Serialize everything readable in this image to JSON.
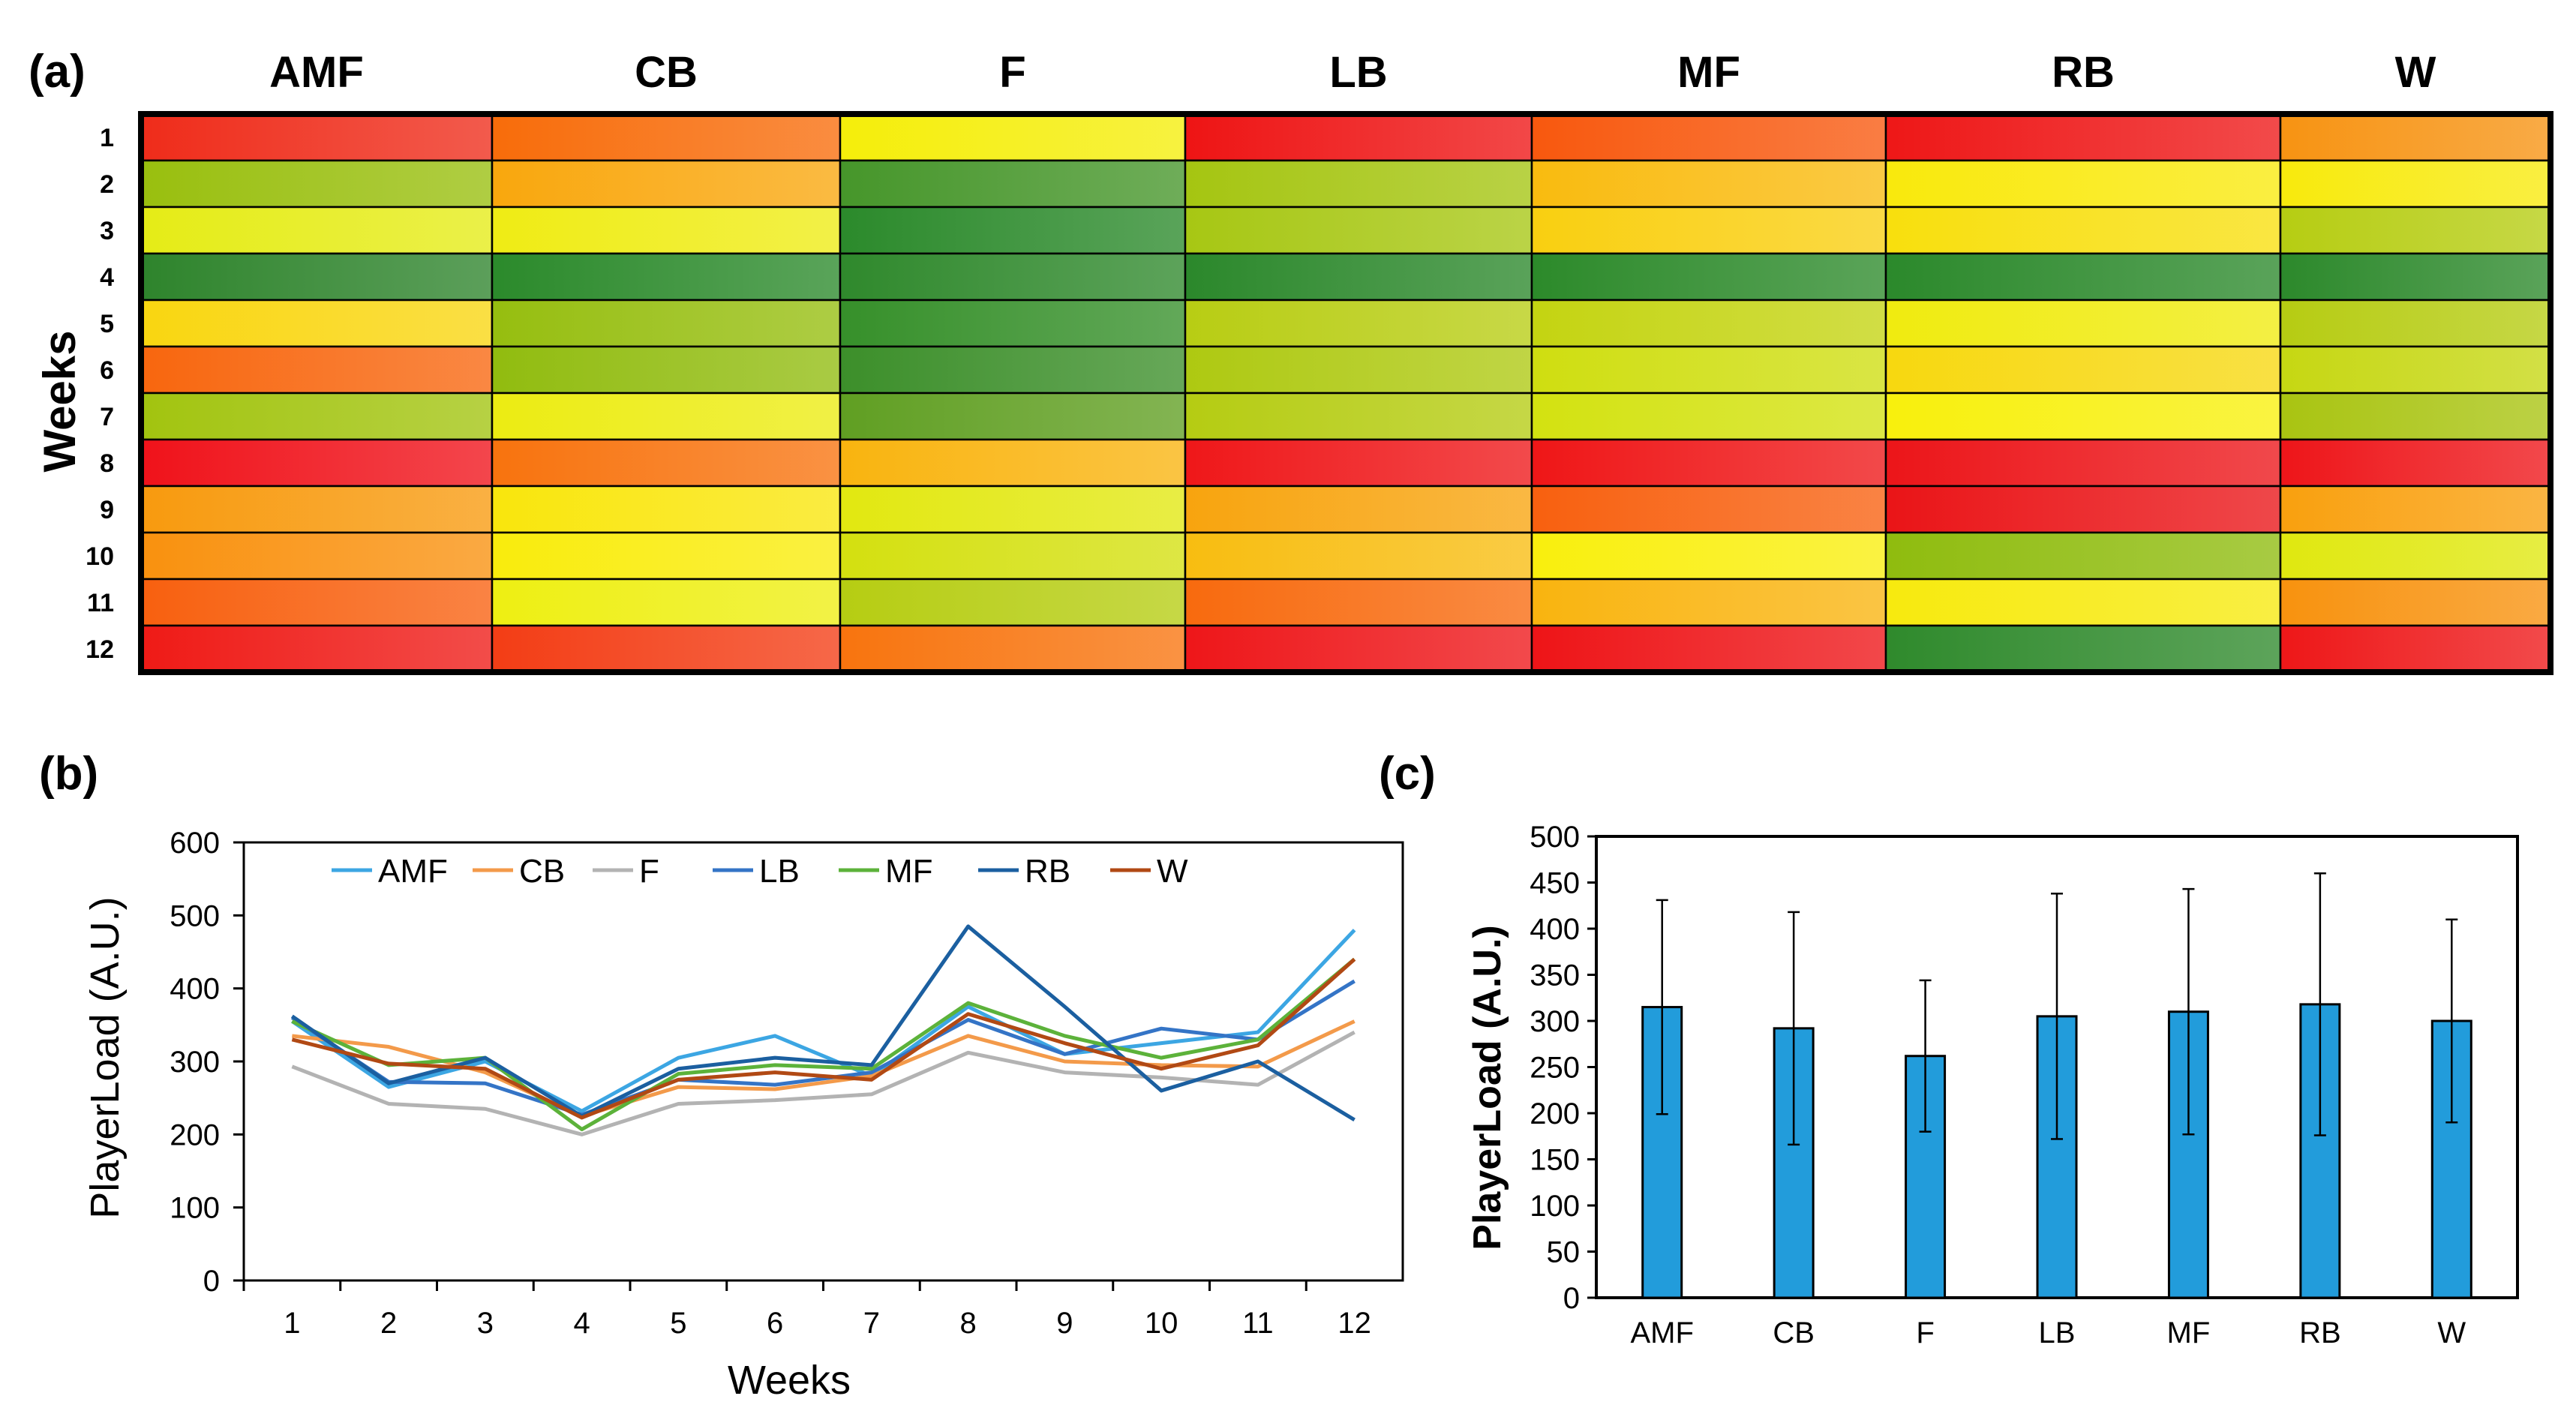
{
  "panels": {
    "a": "(a)",
    "b": "(b)",
    "c": "(c)"
  },
  "chart_data": [
    {
      "id": "a",
      "type": "heatmap",
      "columns": [
        "AMF",
        "CB",
        "F",
        "LB",
        "MF",
        "RB",
        "W"
      ],
      "rows": [
        "1",
        "2",
        "3",
        "4",
        "5",
        "6",
        "7",
        "8",
        "9",
        "10",
        "11",
        "12"
      ],
      "ylabel": "Weeks",
      "colorscale": "green (low) - yellow - red (high), relative within each position",
      "cell_colors": [
        [
          "#ef2c1a",
          "#f86c0a",
          "#f5ee0a",
          "#ee1414",
          "#f8580e",
          "#ee1717",
          "#f79312"
        ],
        [
          "#99bf0e",
          "#f9a70d",
          "#46962a",
          "#a5c511",
          "#f9bb0f",
          "#f9e90c",
          "#f8ea0c"
        ],
        [
          "#e5ec16",
          "#efec14",
          "#2b8a2b",
          "#a7c713",
          "#f9cf10",
          "#f8df0d",
          "#b6cd12"
        ],
        [
          "#2e842c",
          "#2b8a2b",
          "#2f892c",
          "#2b882b",
          "#2c8a2a",
          "#2b892b",
          "#2c892b"
        ],
        [
          "#f9d610",
          "#96be0f",
          "#36902a",
          "#b8cd13",
          "#c4d411",
          "#f0eb0f",
          "#b6cc12"
        ],
        [
          "#f8660e",
          "#91bc0f",
          "#3c8f2a",
          "#aec911",
          "#cfde10",
          "#f7d80f",
          "#c6d712"
        ],
        [
          "#a2c40f",
          "#ecec12",
          "#609f22",
          "#b5cc12",
          "#d3e210",
          "#f8f00c",
          "#a9c411"
        ],
        [
          "#f0121a",
          "#f8730e",
          "#f9b40f",
          "#ef1719",
          "#ef1617",
          "#ec1519",
          "#ee1519"
        ],
        [
          "#f89a0e",
          "#f9e60c",
          "#e2e810",
          "#f8a40e",
          "#f8600f",
          "#ea1417",
          "#f9a00e"
        ],
        [
          "#f9910e",
          "#f9ec0c",
          "#d4e00f",
          "#f8bd10",
          "#f9ef0d",
          "#8fbc0e",
          "#e0e80f"
        ],
        [
          "#f8600f",
          "#eeef12",
          "#b6cd12",
          "#f86a0e",
          "#f9b40f",
          "#f7ea0e",
          "#f8920e"
        ],
        [
          "#ef1a16",
          "#f33d15",
          "#f8740e",
          "#ee1619",
          "#ee1417",
          "#2f8a2c",
          "#ee1718"
        ]
      ]
    },
    {
      "id": "b",
      "type": "line",
      "x": [
        1,
        2,
        3,
        4,
        5,
        6,
        7,
        8,
        9,
        10,
        11,
        12
      ],
      "xlabel": "Weeks",
      "ylabel": "PlayerLoad (A.U.)",
      "ylim": [
        0,
        600
      ],
      "yticks": [
        0,
        100,
        200,
        300,
        400,
        500,
        600
      ],
      "legend_position": "top",
      "series": [
        {
          "name": "AMF",
          "color": "#3ca6e3",
          "values": [
            355,
            265,
            300,
            232,
            305,
            335,
            280,
            375,
            310,
            325,
            340,
            480
          ]
        },
        {
          "name": "CB",
          "color": "#f39a4a",
          "values": [
            335,
            320,
            285,
            225,
            265,
            262,
            280,
            335,
            300,
            295,
            293,
            355
          ]
        },
        {
          "name": "F",
          "color": "#b3b3b3",
          "values": [
            293,
            242,
            235,
            200,
            242,
            247,
            255,
            312,
            285,
            278,
            268,
            340
          ]
        },
        {
          "name": "LB",
          "color": "#3474c6",
          "values": [
            360,
            272,
            270,
            227,
            275,
            268,
            285,
            357,
            310,
            345,
            330,
            410
          ]
        },
        {
          "name": "MF",
          "color": "#5cb23a",
          "values": [
            355,
            295,
            305,
            207,
            283,
            295,
            290,
            380,
            335,
            305,
            330,
            440
          ]
        },
        {
          "name": "RB",
          "color": "#1b5fa0",
          "values": [
            362,
            270,
            305,
            225,
            290,
            305,
            295,
            485,
            375,
            260,
            300,
            220
          ]
        },
        {
          "name": "W",
          "color": "#b14914",
          "values": [
            330,
            297,
            290,
            223,
            275,
            285,
            275,
            365,
            325,
            290,
            322,
            440
          ]
        }
      ]
    },
    {
      "id": "c",
      "type": "bar",
      "categories": [
        "AMF",
        "CB",
        "F",
        "LB",
        "MF",
        "RB",
        "W"
      ],
      "values": [
        315,
        292,
        262,
        305,
        310,
        318,
        300
      ],
      "errors": [
        116,
        126,
        82,
        133,
        133,
        142,
        110
      ],
      "bar_color": "#229cdb",
      "ylabel": "PlayerLoad (A.U.)",
      "ylim": [
        0,
        500
      ],
      "yticks": [
        0,
        50,
        100,
        150,
        200,
        250,
        300,
        350,
        400,
        450,
        500
      ]
    }
  ]
}
